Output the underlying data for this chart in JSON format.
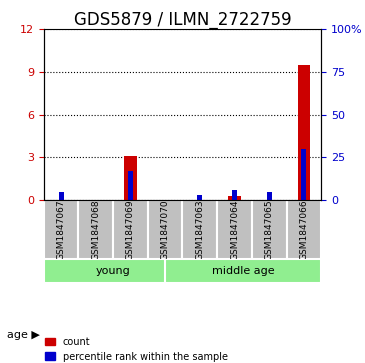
{
  "title": "GDS5879 / ILMN_2722759",
  "samples": [
    "GSM1847067",
    "GSM1847068",
    "GSM1847069",
    "GSM1847070",
    "GSM1847063",
    "GSM1847064",
    "GSM1847065",
    "GSM1847066"
  ],
  "count_values": [
    0,
    0,
    3.1,
    0,
    0,
    0.3,
    0,
    9.5
  ],
  "percentile_values": [
    5,
    0,
    17,
    0,
    3,
    6,
    5,
    30
  ],
  "left_ylim": [
    0,
    12
  ],
  "right_ylim": [
    0,
    100
  ],
  "left_yticks": [
    0,
    3,
    6,
    9,
    12
  ],
  "right_yticks": [
    0,
    25,
    50,
    75,
    100
  ],
  "right_yticklabels": [
    "0",
    "25",
    "50",
    "75",
    "100%"
  ],
  "groups": [
    {
      "label": "young",
      "indices": [
        0,
        1,
        2,
        3
      ]
    },
    {
      "label": "middle age",
      "indices": [
        4,
        5,
        6,
        7
      ]
    }
  ],
  "group_colors": [
    "#90EE90",
    "#90EE90"
  ],
  "age_label": "age",
  "bar_color_red": "#CC0000",
  "bar_color_blue": "#0000CC",
  "bar_width": 0.35,
  "sample_box_color": "#C0C0C0",
  "grid_color": "#000000",
  "legend_items": [
    {
      "color": "#CC0000",
      "label": "count"
    },
    {
      "color": "#0000CC",
      "label": "percentile rank within the sample"
    }
  ],
  "left_ytick_color": "#CC0000",
  "right_ytick_color": "#0000CC",
  "title_fontsize": 12,
  "tick_fontsize": 8,
  "label_fontsize": 8
}
